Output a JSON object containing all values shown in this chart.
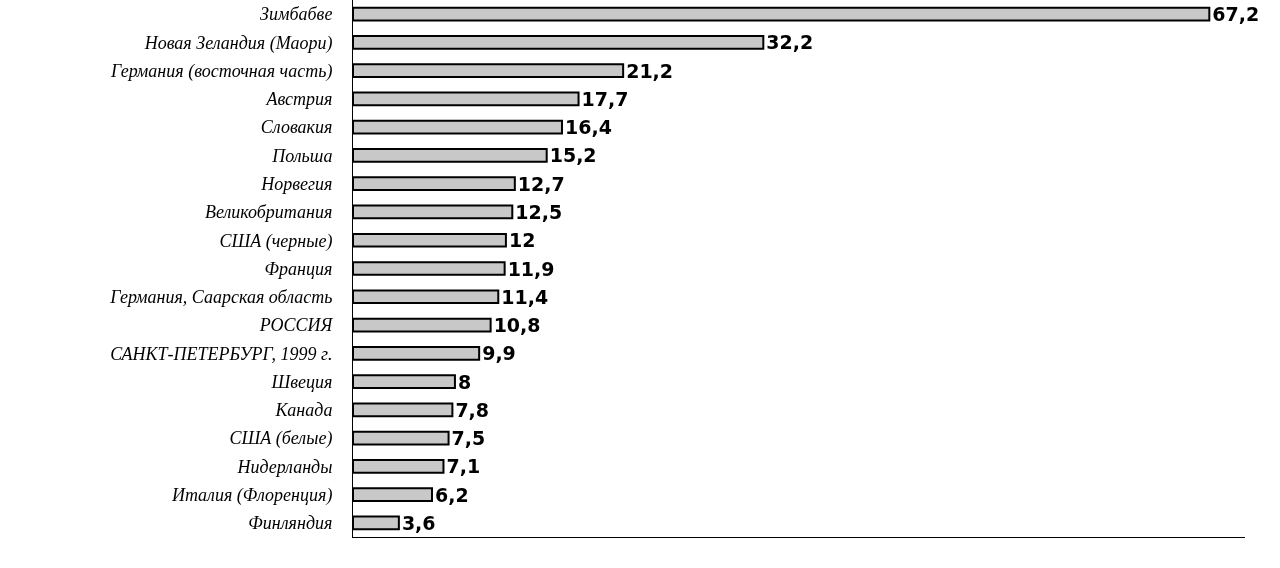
{
  "chart_data": {
    "type": "bar",
    "orientation": "horizontal",
    "categories": [
      "Зимбабве",
      "Новая Зеландия (Маори)",
      "Германия (восточная часть)",
      "Австрия",
      "Словакия",
      "Польша",
      "Норвегия",
      "Великобритания",
      "США (черные)",
      "Франция",
      "Германия, Саарская область",
      "РОССИЯ",
      "САНКТ-ПЕТЕРБУРГ, 1999 г.",
      "Швеция",
      "Канада",
      "США (белые)",
      "Нидерланды",
      "Италия (Флоренция)",
      "Финляндия"
    ],
    "values": [
      67.2,
      32.2,
      21.2,
      17.7,
      16.4,
      15.2,
      12.7,
      12.5,
      12,
      11.9,
      11.4,
      10.8,
      9.9,
      8,
      7.8,
      7.5,
      7.1,
      6.2,
      3.6
    ],
    "value_labels": [
      "67,2",
      "32,2",
      "21,2",
      "17,7",
      "16,4",
      "15,2",
      "12,7",
      "12,5",
      "12",
      "11,9",
      "11,4",
      "10,8",
      "9,9",
      "8",
      "7,8",
      "7,5",
      "7,1",
      "6,2",
      "3,6"
    ],
    "color": "#c8c8c8",
    "xlim": [
      0,
      70
    ],
    "tick_labels": "y"
  }
}
